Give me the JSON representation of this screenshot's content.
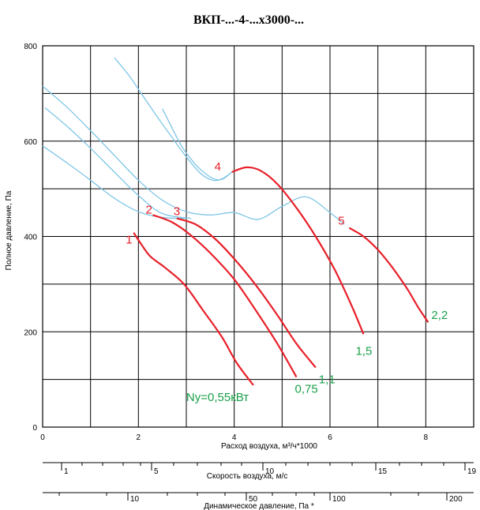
{
  "chart_data": {
    "type": "line",
    "title": "ВКП-...-4-...х3000-...",
    "xlabel": "Расход воздуха, м³/ч*1000",
    "ylabel": "Полное давление, Па",
    "xlim": [
      0,
      9
    ],
    "ylim": [
      0,
      800
    ],
    "x_ticks": [
      "0",
      "2",
      "4",
      "6",
      "8"
    ],
    "y_ticks": [
      "0",
      "200",
      "400",
      "600",
      "800"
    ],
    "grid": true,
    "colors": {
      "fan": "#e8202a",
      "system": "#7fc6e6",
      "power": "#1aa04a",
      "grid": "#000000"
    },
    "speed_axis": {
      "label": "Скорость воздуха, м/с",
      "ticks": [
        "1",
        "5",
        "10",
        "15",
        "19"
      ]
    },
    "dynamic_axis": {
      "label": "Динамическое давление, Па *",
      "ticks": [
        "10",
        "50",
        "100",
        "200"
      ]
    },
    "series": [
      {
        "label": "1",
        "power": "Ny=0,55кВт",
        "x": [
          1.9,
          2.05,
          2.25,
          2.55,
          2.95,
          3.35,
          3.75,
          4.05,
          4.4
        ],
        "y": [
          408,
          385,
          358,
          335,
          300,
          245,
          188,
          135,
          88
        ]
      },
      {
        "label": "2",
        "power": "0,75",
        "x": [
          2.3,
          2.7,
          3.1,
          3.55,
          4.0,
          4.45,
          4.9,
          5.3
        ],
        "y": [
          445,
          430,
          402,
          360,
          310,
          245,
          175,
          105
        ]
      },
      {
        "label": "3",
        "power": "1,1",
        "x": [
          2.8,
          3.2,
          3.6,
          4.0,
          4.45,
          4.9,
          5.3,
          5.7
        ],
        "y": [
          438,
          425,
          395,
          353,
          298,
          235,
          175,
          125
        ]
      },
      {
        "label": "4",
        "power": "1,5",
        "x": [
          3.95,
          4.25,
          4.55,
          4.9,
          5.3,
          5.7,
          6.1,
          6.45,
          6.7
        ],
        "y": [
          535,
          545,
          538,
          510,
          460,
          400,
          330,
          255,
          195
        ]
      },
      {
        "label": "5",
        "power": "2,2",
        "x": [
          6.4,
          6.7,
          7.0,
          7.3,
          7.6,
          7.85,
          8.05
        ],
        "y": [
          418,
          400,
          372,
          335,
          292,
          250,
          220
        ]
      }
    ],
    "system_curves": [
      {
        "x": [
          0,
          0.5,
          1.0,
          1.5,
          2.0,
          2.5,
          3.0
        ],
        "y": [
          590,
          555,
          518,
          480,
          452,
          440,
          438
        ]
      },
      {
        "x": [
          0.05,
          0.5,
          1.0,
          1.5,
          2.0,
          2.5,
          3.1
        ],
        "y": [
          670,
          632,
          585,
          535,
          486,
          448,
          438
        ]
      },
      {
        "x": [
          0.0,
          0.5,
          1.0,
          1.5,
          2.0,
          2.5,
          3.0,
          3.5,
          4.0,
          4.5,
          5.0,
          5.5,
          6.0,
          6.3
        ],
        "y": [
          715,
          672,
          622,
          570,
          518,
          476,
          452,
          445,
          450,
          436,
          463,
          483,
          450,
          425
        ]
      },
      {
        "x": [
          1.5,
          1.8,
          2.1,
          2.4,
          2.7,
          3.0,
          3.3,
          3.55,
          3.75,
          3.95
        ],
        "y": [
          775,
          738,
          694,
          650,
          608,
          567,
          532,
          518,
          521,
          535
        ]
      },
      {
        "x": [
          2.5,
          2.7,
          2.9,
          3.1,
          3.3,
          3.55,
          3.75,
          3.95
        ],
        "y": [
          668,
          628,
          590,
          562,
          540,
          522,
          520,
          535
        ]
      }
    ]
  }
}
